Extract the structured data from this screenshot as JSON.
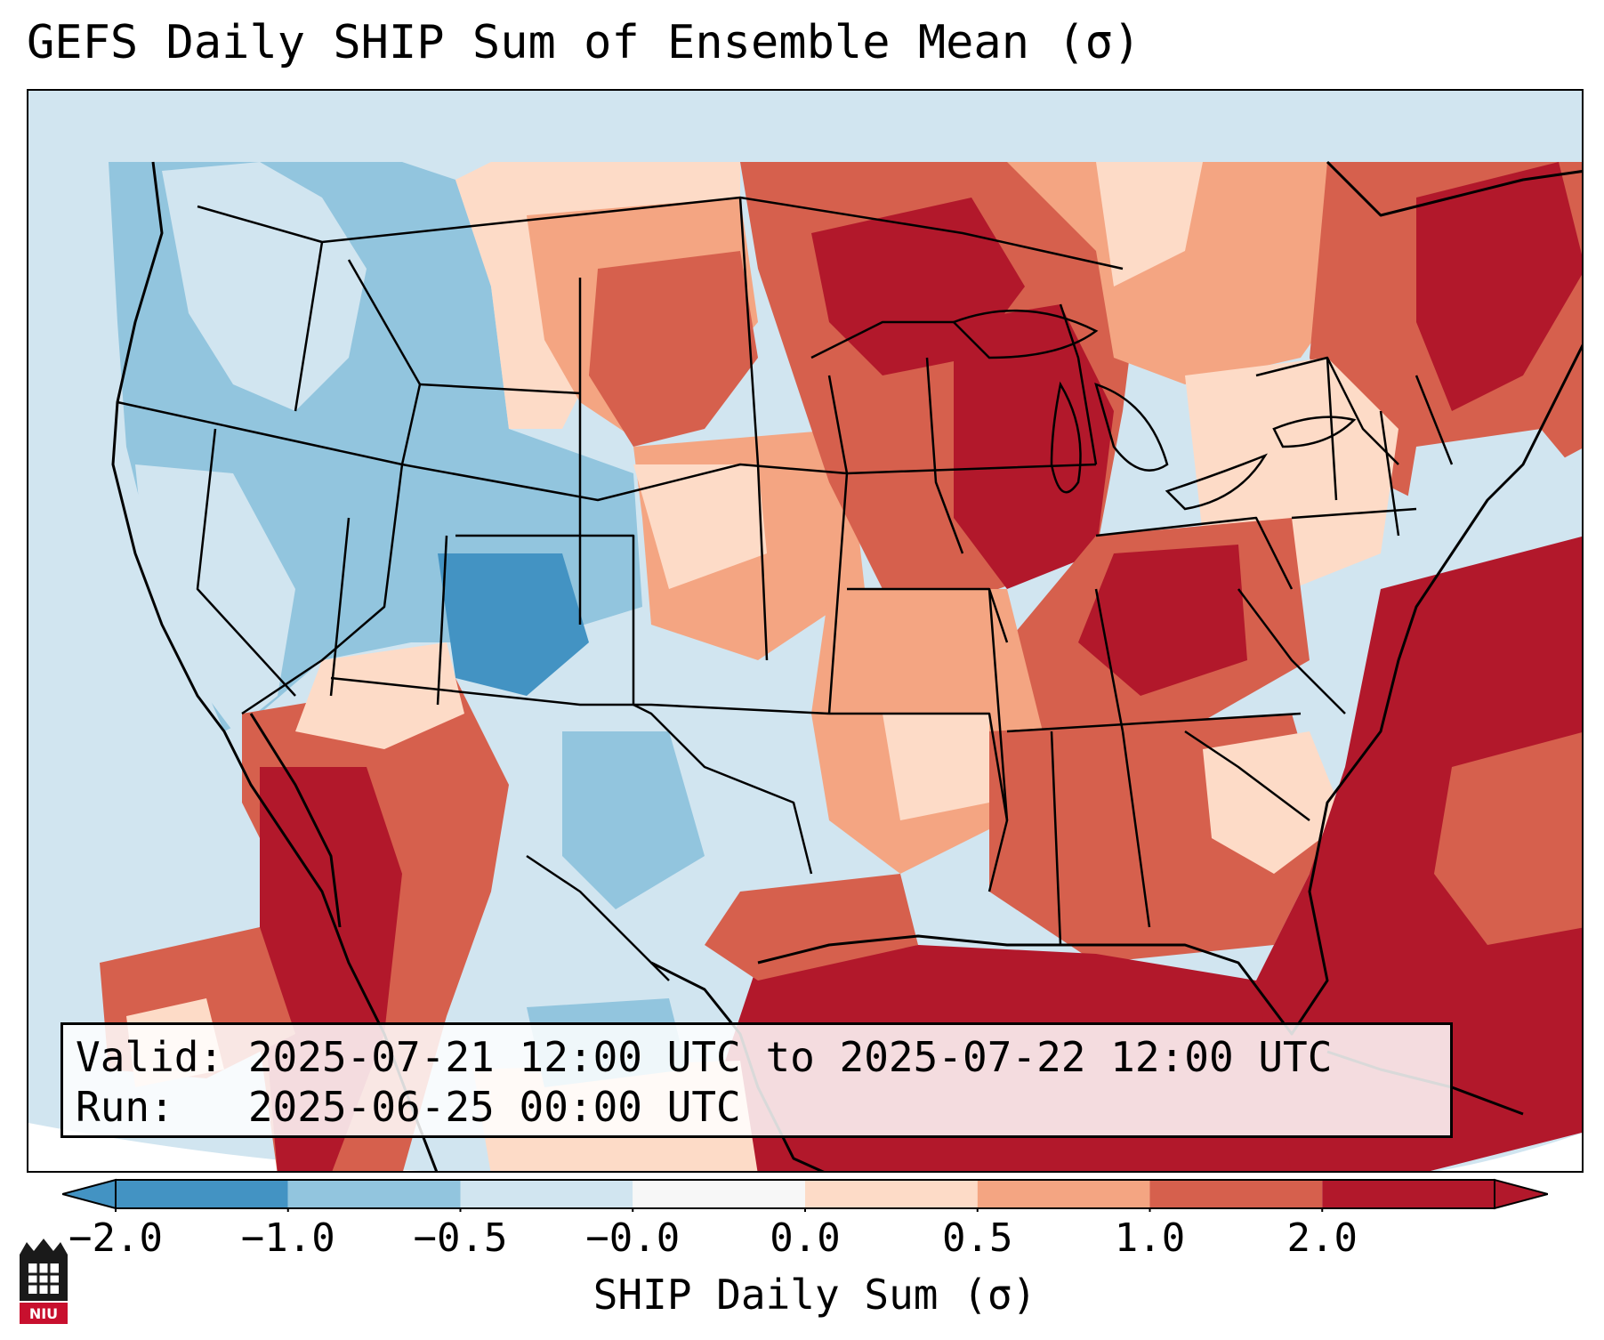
{
  "title": "GEFS Daily SHIP Sum of Ensemble Mean (σ)",
  "info": {
    "valid_line": "Valid: 2025-07-21 12:00 UTC to 2025-07-22 12:00 UTC",
    "run_line": "Run:   2025-06-25 00:00 UTC"
  },
  "colorbar": {
    "label": "SHIP Daily Sum (σ)",
    "tick_labels": [
      "−2.0",
      "−1.0",
      "−0.5",
      "−0.0",
      "0.0",
      "0.5",
      "1.0",
      "2.0"
    ],
    "colors": [
      "#4393c3",
      "#92c5de",
      "#d1e5f0",
      "#f7f7f7",
      "#fddbc7",
      "#f4a582",
      "#d6604d",
      "#b2182b"
    ],
    "extend": "both"
  },
  "logo": {
    "text": "NIU",
    "name": "niu-logo"
  }
}
